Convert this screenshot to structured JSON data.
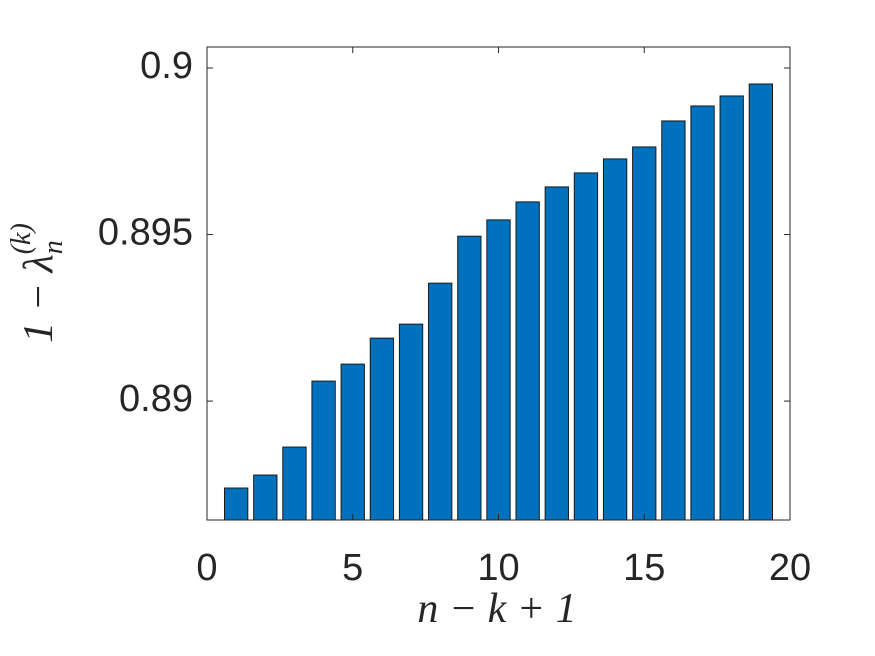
{
  "chart_data": {
    "type": "bar",
    "xlabel": "n − k + 1",
    "ylabel": {
      "base": "1 − λ",
      "sub": "n",
      "sup": "(k)"
    },
    "x": [
      1,
      2,
      3,
      4,
      5,
      6,
      7,
      8,
      9,
      10,
      11,
      12,
      13,
      14,
      15,
      16,
      17,
      18,
      19
    ],
    "values": [
      0.88739,
      0.88778,
      0.88862,
      0.8906,
      0.89111,
      0.89189,
      0.89231,
      0.89354,
      0.89495,
      0.89544,
      0.89598,
      0.89643,
      0.89685,
      0.89727,
      0.89763,
      0.89841,
      0.89886,
      0.89916,
      0.89952
    ],
    "color": "#0072bd",
    "xlim": [
      0,
      20
    ],
    "xticks": [
      0,
      5,
      10,
      15,
      20
    ],
    "ylim": [
      0.88643,
      0.90063
    ],
    "yticks": [
      0.89,
      0.895,
      0.9
    ]
  }
}
